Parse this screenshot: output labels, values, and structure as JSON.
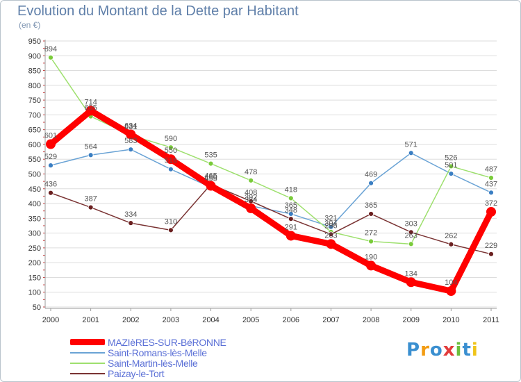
{
  "chart_data": {
    "type": "line",
    "title": "Evolution du Montant de la Dette par Habitant",
    "subtitle": "(en €)",
    "x": [
      "2000",
      "2001",
      "2002",
      "2003",
      "2004",
      "2005",
      "2006",
      "2007",
      "2008",
      "2009",
      "2010",
      "2011"
    ],
    "ylim": [
      50,
      950
    ],
    "yticks": [
      50,
      100,
      150,
      200,
      250,
      300,
      350,
      400,
      450,
      500,
      550,
      600,
      650,
      700,
      750,
      800,
      850,
      900,
      950
    ],
    "grid": "horizontal",
    "legend_position": "bottom-left",
    "series": [
      {
        "name": "MAZIèRES-SUR-BéRONNE",
        "color": "#ff0000",
        "marker_color": "#ff0000",
        "values": [
          601,
          714,
          634,
          550,
          460,
          384,
          291,
          263,
          190,
          134,
          104,
          372
        ]
      },
      {
        "name": "Saint-Romans-lès-Melle",
        "color": "#6aa3d5",
        "marker_color": "#3a7ec2",
        "values": [
          529,
          564,
          583,
          516,
          455,
          392,
          365,
          321,
          469,
          571,
          501,
          437
        ]
      },
      {
        "name": "Saint-Martin-lès-Melle",
        "color": "#9ee06e",
        "marker_color": "#7acb3a",
        "values": [
          894,
          695,
          631,
          590,
          535,
          478,
          418,
          304,
          272,
          263,
          526,
          487
        ]
      },
      {
        "name": "Paizay-le-Tort",
        "color": "#7a3333",
        "marker_color": "#6a1f1f",
        "values": [
          436,
          387,
          334,
          310,
          465,
          408,
          348,
          296,
          365,
          303,
          262,
          229
        ]
      }
    ],
    "labels_order": [
      2,
      1,
      3,
      0
    ]
  },
  "logo": {
    "text": "Proxiti",
    "letters": [
      "P",
      "r",
      "o",
      "x",
      "i",
      "t",
      "i"
    ],
    "colors": [
      "#3a8fd0",
      "#f39c12",
      "#3a8fd0",
      "#e23b3b",
      "#6cbf3c",
      "#3a8fd0",
      "#f0c419"
    ]
  }
}
